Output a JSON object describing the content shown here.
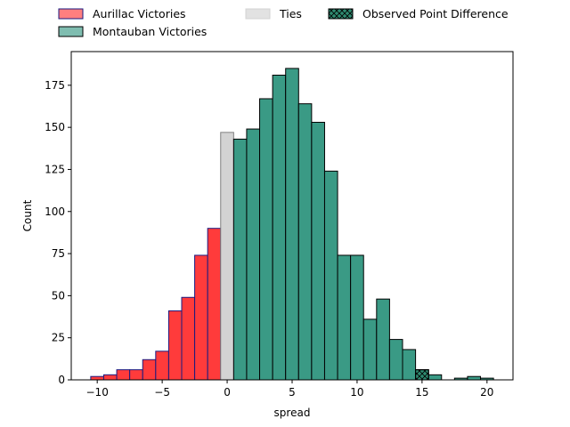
{
  "chart_data": {
    "type": "bar",
    "subtype": "histogram",
    "xlabel": "spread",
    "ylabel": "Count",
    "xlim": [
      -12,
      22
    ],
    "ylim": [
      0,
      195
    ],
    "xticks": [
      -10,
      -5,
      0,
      5,
      10,
      15,
      20
    ],
    "yticks": [
      0,
      25,
      50,
      75,
      100,
      125,
      150,
      175
    ],
    "grid": false,
    "legend_position": "top, above plot (3 columns)",
    "legend": [
      {
        "label": "Aurillac Victories",
        "color": "#ff3b3b",
        "edge": "#1a1a80",
        "kind": "bar"
      },
      {
        "label": "Montauban Victories",
        "color": "#3a9a85",
        "edge": "#000000",
        "kind": "bar"
      },
      {
        "label": "Ties",
        "color": "#d3d3d3",
        "edge": "#d3d3d3",
        "kind": "bar"
      },
      {
        "label": "Observed Point Difference",
        "color": "#2e8a70",
        "edge": "#000000",
        "kind": "hatched-bar"
      }
    ],
    "bin_width": 1,
    "series": [
      {
        "name": "Aurillac Victories",
        "color": "#ff3b3b",
        "edge": "#1a1a80",
        "bins": [
          {
            "x0": -10.5,
            "x1": -9.5,
            "count": 2
          },
          {
            "x0": -9.5,
            "x1": -8.5,
            "count": 3
          },
          {
            "x0": -8.5,
            "x1": -7.5,
            "count": 6
          },
          {
            "x0": -7.5,
            "x1": -6.5,
            "count": 6
          },
          {
            "x0": -6.5,
            "x1": -5.5,
            "count": 12
          },
          {
            "x0": -5.5,
            "x1": -4.5,
            "count": 17
          },
          {
            "x0": -4.5,
            "x1": -3.5,
            "count": 41
          },
          {
            "x0": -3.5,
            "x1": -2.5,
            "count": 49
          },
          {
            "x0": -2.5,
            "x1": -1.5,
            "count": 74
          },
          {
            "x0": -1.5,
            "x1": -0.5,
            "count": 90
          }
        ]
      },
      {
        "name": "Ties",
        "color": "#d3d3d3",
        "edge": "#808080",
        "bins": [
          {
            "x0": -0.5,
            "x1": 0.5,
            "count": 147
          }
        ]
      },
      {
        "name": "Montauban Victories",
        "color": "#3a9a85",
        "edge": "#000000",
        "bins": [
          {
            "x0": 0.5,
            "x1": 1.5,
            "count": 143
          },
          {
            "x0": 1.5,
            "x1": 2.5,
            "count": 149
          },
          {
            "x0": 2.5,
            "x1": 3.5,
            "count": 167
          },
          {
            "x0": 3.5,
            "x1": 4.5,
            "count": 181
          },
          {
            "x0": 4.5,
            "x1": 5.5,
            "count": 185
          },
          {
            "x0": 5.5,
            "x1": 6.5,
            "count": 164
          },
          {
            "x0": 6.5,
            "x1": 7.5,
            "count": 153
          },
          {
            "x0": 7.5,
            "x1": 8.5,
            "count": 124
          },
          {
            "x0": 8.5,
            "x1": 9.5,
            "count": 74
          },
          {
            "x0": 9.5,
            "x1": 10.5,
            "count": 74
          },
          {
            "x0": 10.5,
            "x1": 11.5,
            "count": 36
          },
          {
            "x0": 11.5,
            "x1": 12.5,
            "count": 48
          },
          {
            "x0": 12.5,
            "x1": 13.5,
            "count": 24
          },
          {
            "x0": 13.5,
            "x1": 14.5,
            "count": 18
          },
          {
            "x0": 14.5,
            "x1": 15.5,
            "count": 6
          },
          {
            "x0": 15.5,
            "x1": 16.5,
            "count": 3
          },
          {
            "x0": 17.5,
            "x1": 18.5,
            "count": 1
          },
          {
            "x0": 18.5,
            "x1": 19.5,
            "count": 2
          },
          {
            "x0": 19.5,
            "x1": 20.5,
            "count": 1
          }
        ]
      }
    ],
    "observed_point_difference": {
      "x0": 14.5,
      "x1": 15.5,
      "count": 6,
      "color": "#2e8a70",
      "edge": "#000000",
      "hatch": "x"
    }
  }
}
